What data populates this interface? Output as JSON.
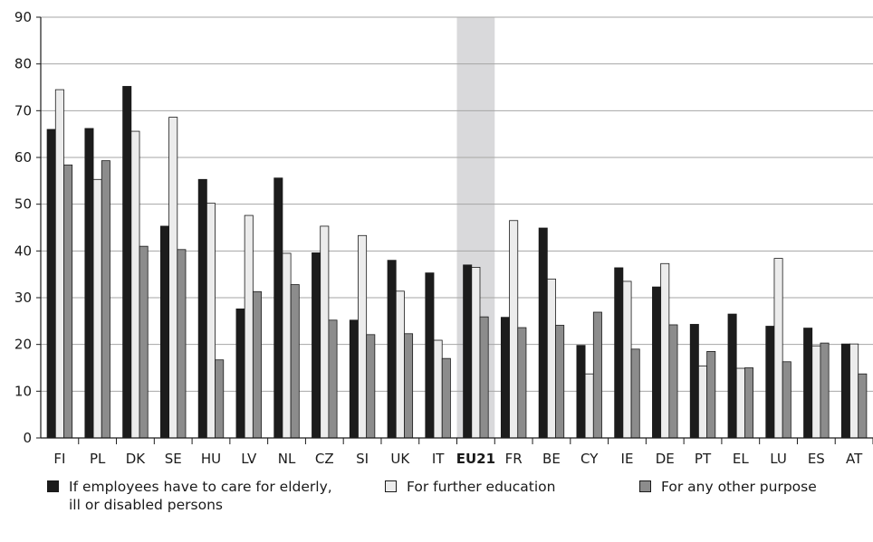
{
  "chart_data": {
    "type": "bar",
    "title": "",
    "xlabel": "",
    "ylabel": "",
    "ylim": [
      0,
      90
    ],
    "yticks": [
      "0",
      "10",
      "20",
      "30",
      "40",
      "50",
      "60",
      "70",
      "80",
      "90"
    ],
    "grid": true,
    "highlight_category": "EU21",
    "highlight_color": "#d9d9db",
    "categories": [
      "FI",
      "PL",
      "DK",
      "SE",
      "HU",
      "LV",
      "NL",
      "CZ",
      "SI",
      "UK",
      "IT",
      "EU21",
      "FR",
      "BE",
      "CY",
      "IE",
      "DE",
      "PT",
      "EL",
      "LU",
      "ES",
      "AT"
    ],
    "series": [
      {
        "name": "If employees have to care for elderly, ill or disabled persons",
        "color": "#1c1c1c",
        "values": [
          66,
          66.2,
          75.2,
          45.3,
          55.3,
          27.6,
          55.6,
          39.6,
          25.2,
          38,
          35.3,
          37,
          25.8,
          44.9,
          19.8,
          36.4,
          32.3,
          24.3,
          26.5,
          23.9,
          23.5,
          20.1
        ]
      },
      {
        "name": "For further education",
        "color": "#ececec",
        "values": [
          74.5,
          55.3,
          65.6,
          68.6,
          50.2,
          47.6,
          39.5,
          45.3,
          43.3,
          31.4,
          20.9,
          36.5,
          46.5,
          34,
          13.7,
          33.5,
          37.3,
          15.4,
          14.9,
          38.4,
          19.7,
          20.1
        ]
      },
      {
        "name": "For any other purpose",
        "color": "#8c8c8c",
        "values": [
          58.4,
          59.3,
          41,
          40.3,
          16.7,
          31.3,
          32.8,
          25.2,
          22.1,
          22.3,
          17,
          25.9,
          23.6,
          24.1,
          26.9,
          19,
          24.2,
          18.5,
          15,
          16.3,
          20.3,
          13.7
        ]
      }
    ],
    "legend_placement": "bottom"
  },
  "legend": {
    "items": [
      {
        "label": "If employees have to care for elderly,\nill or disabled persons",
        "color": "#1c1c1c"
      },
      {
        "label": "For further education",
        "color": "#ececec"
      },
      {
        "label": "For any other purpose",
        "color": "#8c8c8c"
      }
    ]
  }
}
